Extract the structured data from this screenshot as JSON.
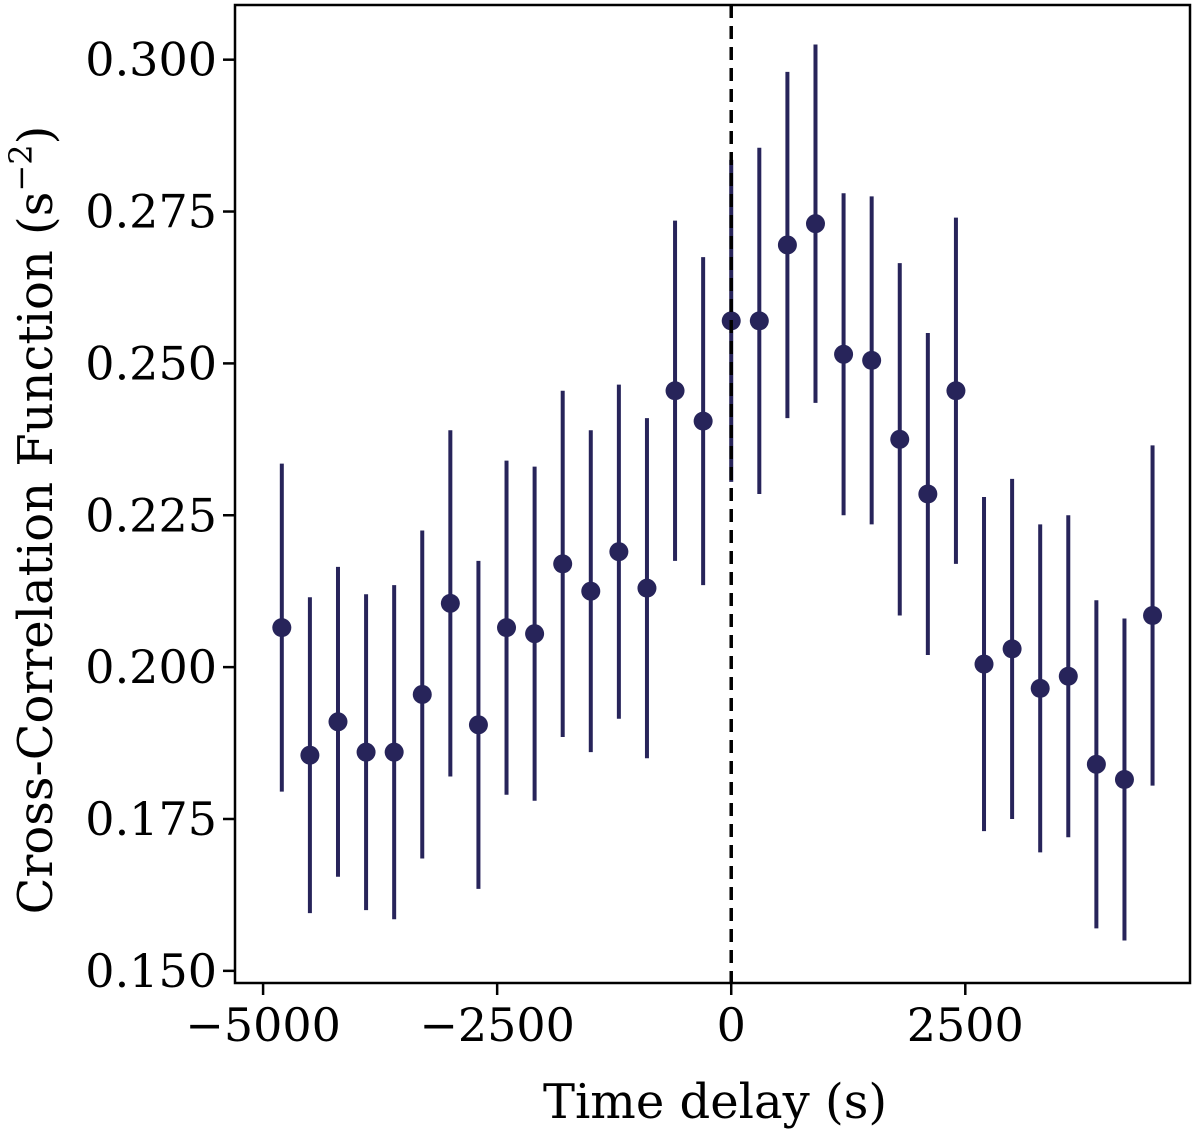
{
  "chart_data": {
    "type": "scatter",
    "xlabel": "Time delay (s)",
    "ylabel_main": "Cross-Correlation Function (s",
    "ylabel_sup": "−2",
    "ylabel_close": ")",
    "xlim": [
      -5300,
      4900
    ],
    "ylim": [
      0.148,
      0.309
    ],
    "x_ticks": [
      -5000,
      -2500,
      0,
      2500
    ],
    "x_tick_labels": [
      "−5000",
      "−2500",
      "0",
      "2500"
    ],
    "y_ticks": [
      0.15,
      0.175,
      0.2,
      0.225,
      0.25,
      0.275,
      0.3
    ],
    "y_tick_labels": [
      "0.150",
      "0.175",
      "0.200",
      "0.225",
      "0.250",
      "0.275",
      "0.300"
    ],
    "reference_line_x": 0,
    "grid": false,
    "marker_color": "#27245a",
    "points": [
      {
        "x": -4800,
        "y": 0.2065,
        "err": 0.027
      },
      {
        "x": -4500,
        "y": 0.1855,
        "err": 0.026
      },
      {
        "x": -4200,
        "y": 0.191,
        "err": 0.0255
      },
      {
        "x": -3900,
        "y": 0.186,
        "err": 0.026
      },
      {
        "x": -3600,
        "y": 0.186,
        "err": 0.0275
      },
      {
        "x": -3300,
        "y": 0.1955,
        "err": 0.027
      },
      {
        "x": -3000,
        "y": 0.2105,
        "err": 0.0285
      },
      {
        "x": -2700,
        "y": 0.1905,
        "err": 0.027
      },
      {
        "x": -2400,
        "y": 0.2065,
        "err": 0.0275
      },
      {
        "x": -2100,
        "y": 0.2055,
        "err": 0.0275
      },
      {
        "x": -1800,
        "y": 0.217,
        "err": 0.0285
      },
      {
        "x": -1500,
        "y": 0.2125,
        "err": 0.0265
      },
      {
        "x": -1200,
        "y": 0.219,
        "err": 0.0275
      },
      {
        "x": -900,
        "y": 0.213,
        "err": 0.028
      },
      {
        "x": -600,
        "y": 0.2455,
        "err": 0.028
      },
      {
        "x": -300,
        "y": 0.2405,
        "err": 0.027
      },
      {
        "x": 0,
        "y": 0.257,
        "err": 0.0265
      },
      {
        "x": 300,
        "y": 0.257,
        "err": 0.0285
      },
      {
        "x": 600,
        "y": 0.2695,
        "err": 0.0285
      },
      {
        "x": 900,
        "y": 0.273,
        "err": 0.0295
      },
      {
        "x": 1200,
        "y": 0.2515,
        "err": 0.0265
      },
      {
        "x": 1500,
        "y": 0.2505,
        "err": 0.027
      },
      {
        "x": 1800,
        "y": 0.2375,
        "err": 0.029
      },
      {
        "x": 2100,
        "y": 0.2285,
        "err": 0.0265
      },
      {
        "x": 2400,
        "y": 0.2455,
        "err": 0.0285
      },
      {
        "x": 2700,
        "y": 0.2005,
        "err": 0.0275
      },
      {
        "x": 3000,
        "y": 0.203,
        "err": 0.028
      },
      {
        "x": 3300,
        "y": 0.1965,
        "err": 0.027
      },
      {
        "x": 3600,
        "y": 0.1985,
        "err": 0.0265
      },
      {
        "x": 3900,
        "y": 0.184,
        "err": 0.027
      },
      {
        "x": 4200,
        "y": 0.1815,
        "err": 0.0265
      },
      {
        "x": 4500,
        "y": 0.2085,
        "err": 0.028
      }
    ]
  }
}
